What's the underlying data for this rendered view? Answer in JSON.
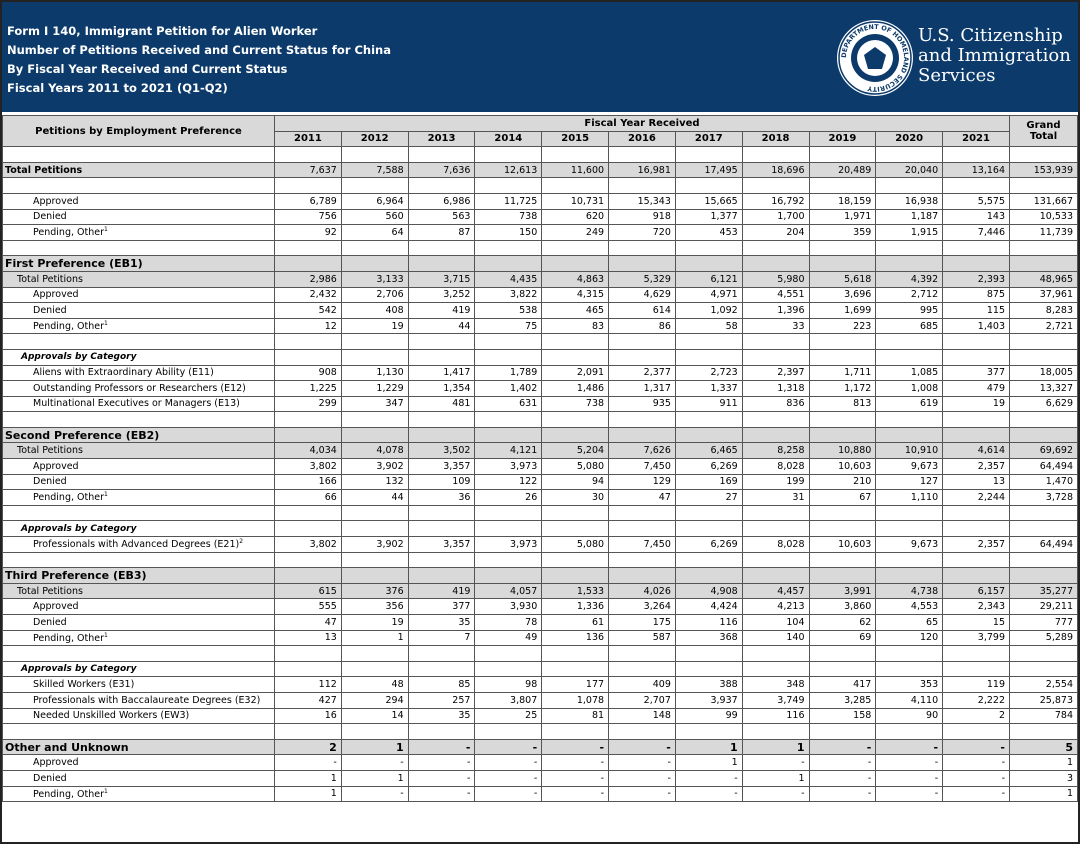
{
  "header": {
    "title_lines": [
      "Form I 140, Immigrant Petition for Alien Worker",
      "Number of Petitions Received and Current Status for China",
      "By Fiscal Year Received and Current Status",
      "Fiscal Years 2011 to 2021 (Q1-Q2)"
    ],
    "seal_text": "DEPARTMENT OF HOMELAND SECURITY",
    "agency_lines": [
      "U.S. Citizenship",
      "and Immigration",
      "Services"
    ]
  },
  "table": {
    "row_header": "Petitions by Employment Preference",
    "group_header": "Fiscal Year Received",
    "columns": [
      "2011",
      "2012",
      "2013",
      "2014",
      "2015",
      "2016",
      "2017",
      "2018",
      "2019",
      "2020",
      "2021"
    ],
    "total_header": "Grand Total",
    "overall": {
      "label": "Total Petitions",
      "values": [
        "7,637",
        "7,588",
        "7,636",
        "12,613",
        "11,600",
        "16,981",
        "17,495",
        "18,696",
        "20,489",
        "20,040",
        "13,164",
        "153,939"
      ],
      "rows": [
        {
          "label": "Approved",
          "values": [
            "6,789",
            "6,964",
            "6,986",
            "11,725",
            "10,731",
            "15,343",
            "15,665",
            "16,792",
            "18,159",
            "16,938",
            "5,575",
            "131,667"
          ]
        },
        {
          "label": "Denied",
          "values": [
            "756",
            "560",
            "563",
            "738",
            "620",
            "918",
            "1,377",
            "1,700",
            "1,971",
            "1,187",
            "143",
            "10,533"
          ]
        },
        {
          "label": "Pending, Other",
          "note": "1",
          "values": [
            "92",
            "64",
            "87",
            "150",
            "249",
            "720",
            "453",
            "204",
            "359",
            "1,915",
            "7,446",
            "11,739"
          ]
        }
      ]
    },
    "sections": [
      {
        "title": "First Preference (EB1)",
        "total": {
          "label": "Total Petitions",
          "values": [
            "2,986",
            "3,133",
            "3,715",
            "4,435",
            "4,863",
            "5,329",
            "6,121",
            "5,980",
            "5,618",
            "4,392",
            "2,393",
            "48,965"
          ]
        },
        "rows": [
          {
            "label": "Approved",
            "values": [
              "2,432",
              "2,706",
              "3,252",
              "3,822",
              "4,315",
              "4,629",
              "4,971",
              "4,551",
              "3,696",
              "2,712",
              "875",
              "37,961"
            ]
          },
          {
            "label": "Denied",
            "values": [
              "542",
              "408",
              "419",
              "538",
              "465",
              "614",
              "1,092",
              "1,396",
              "1,699",
              "995",
              "115",
              "8,283"
            ]
          },
          {
            "label": "Pending, Other",
            "note": "1",
            "values": [
              "12",
              "19",
              "44",
              "75",
              "83",
              "86",
              "58",
              "33",
              "223",
              "685",
              "1,403",
              "2,721"
            ]
          }
        ],
        "category": {
          "title": "Approvals by Category",
          "rows": [
            {
              "label": "Aliens with Extraordinary Ability (E11)",
              "values": [
                "908",
                "1,130",
                "1,417",
                "1,789",
                "2,091",
                "2,377",
                "2,723",
                "2,397",
                "1,711",
                "1,085",
                "377",
                "18,005"
              ]
            },
            {
              "label": "Outstanding Professors or Researchers (E12)",
              "values": [
                "1,225",
                "1,229",
                "1,354",
                "1,402",
                "1,486",
                "1,317",
                "1,337",
                "1,318",
                "1,172",
                "1,008",
                "479",
                "13,327"
              ]
            },
            {
              "label": "Multinational Executives or Managers (E13)",
              "values": [
                "299",
                "347",
                "481",
                "631",
                "738",
                "935",
                "911",
                "836",
                "813",
                "619",
                "19",
                "6,629"
              ]
            }
          ]
        }
      },
      {
        "title": "Second Preference (EB2)",
        "total": {
          "label": "Total Petitions",
          "values": [
            "4,034",
            "4,078",
            "3,502",
            "4,121",
            "5,204",
            "7,626",
            "6,465",
            "8,258",
            "10,880",
            "10,910",
            "4,614",
            "69,692"
          ]
        },
        "rows": [
          {
            "label": "Approved",
            "values": [
              "3,802",
              "3,902",
              "3,357",
              "3,973",
              "5,080",
              "7,450",
              "6,269",
              "8,028",
              "10,603",
              "9,673",
              "2,357",
              "64,494"
            ]
          },
          {
            "label": "Denied",
            "values": [
              "166",
              "132",
              "109",
              "122",
              "94",
              "129",
              "169",
              "199",
              "210",
              "127",
              "13",
              "1,470"
            ]
          },
          {
            "label": "Pending, Other",
            "note": "1",
            "values": [
              "66",
              "44",
              "36",
              "26",
              "30",
              "47",
              "27",
              "31",
              "67",
              "1,110",
              "2,244",
              "3,728"
            ]
          }
        ],
        "category": {
          "title": "Approvals by Category",
          "rows": [
            {
              "label": "Professionals with Advanced Degrees (E21)",
              "note": "2",
              "values": [
                "3,802",
                "3,902",
                "3,357",
                "3,973",
                "5,080",
                "7,450",
                "6,269",
                "8,028",
                "10,603",
                "9,673",
                "2,357",
                "64,494"
              ]
            }
          ]
        }
      },
      {
        "title": "Third Preference (EB3)",
        "total": {
          "label": "Total Petitions",
          "values": [
            "615",
            "376",
            "419",
            "4,057",
            "1,533",
            "4,026",
            "4,908",
            "4,457",
            "3,991",
            "4,738",
            "6,157",
            "35,277"
          ]
        },
        "rows": [
          {
            "label": "Approved",
            "values": [
              "555",
              "356",
              "377",
              "3,930",
              "1,336",
              "3,264",
              "4,424",
              "4,213",
              "3,860",
              "4,553",
              "2,343",
              "29,211"
            ]
          },
          {
            "label": "Denied",
            "values": [
              "47",
              "19",
              "35",
              "78",
              "61",
              "175",
              "116",
              "104",
              "62",
              "65",
              "15",
              "777"
            ]
          },
          {
            "label": "Pending, Other",
            "note": "1",
            "values": [
              "13",
              "1",
              "7",
              "49",
              "136",
              "587",
              "368",
              "140",
              "69",
              "120",
              "3,799",
              "5,289"
            ]
          }
        ],
        "category": {
          "title": "Approvals by Category",
          "rows": [
            {
              "label": "Skilled Workers (E31)",
              "values": [
                "112",
                "48",
                "85",
                "98",
                "177",
                "409",
                "388",
                "348",
                "417",
                "353",
                "119",
                "2,554"
              ]
            },
            {
              "label": "Professionals with Baccalaureate Degrees (E32)",
              "values": [
                "427",
                "294",
                "257",
                "3,807",
                "1,078",
                "2,707",
                "3,937",
                "3,749",
                "3,285",
                "4,110",
                "2,222",
                "25,873"
              ]
            },
            {
              "label": "Needed Unskilled Workers (EW3)",
              "values": [
                "16",
                "14",
                "35",
                "25",
                "81",
                "148",
                "99",
                "116",
                "158",
                "90",
                "2",
                "784"
              ]
            }
          ]
        }
      },
      {
        "title": "Other and Unknown",
        "values": [
          "2",
          "1",
          "-",
          "-",
          "-",
          "-",
          "1",
          "1",
          "-",
          "-",
          "-",
          "5"
        ],
        "rows": [
          {
            "label": "Approved",
            "values": [
              "-",
              "-",
              "-",
              "-",
              "-",
              "-",
              "1",
              "-",
              "-",
              "-",
              "-",
              "1"
            ]
          },
          {
            "label": "Denied",
            "values": [
              "1",
              "1",
              "-",
              "-",
              "-",
              "-",
              "-",
              "1",
              "-",
              "-",
              "-",
              "3"
            ]
          },
          {
            "label": "Pending, Other",
            "note": "1",
            "values": [
              "1",
              "-",
              "-",
              "-",
              "-",
              "-",
              "-",
              "-",
              "-",
              "-",
              "-",
              "1"
            ]
          }
        ]
      }
    ]
  }
}
